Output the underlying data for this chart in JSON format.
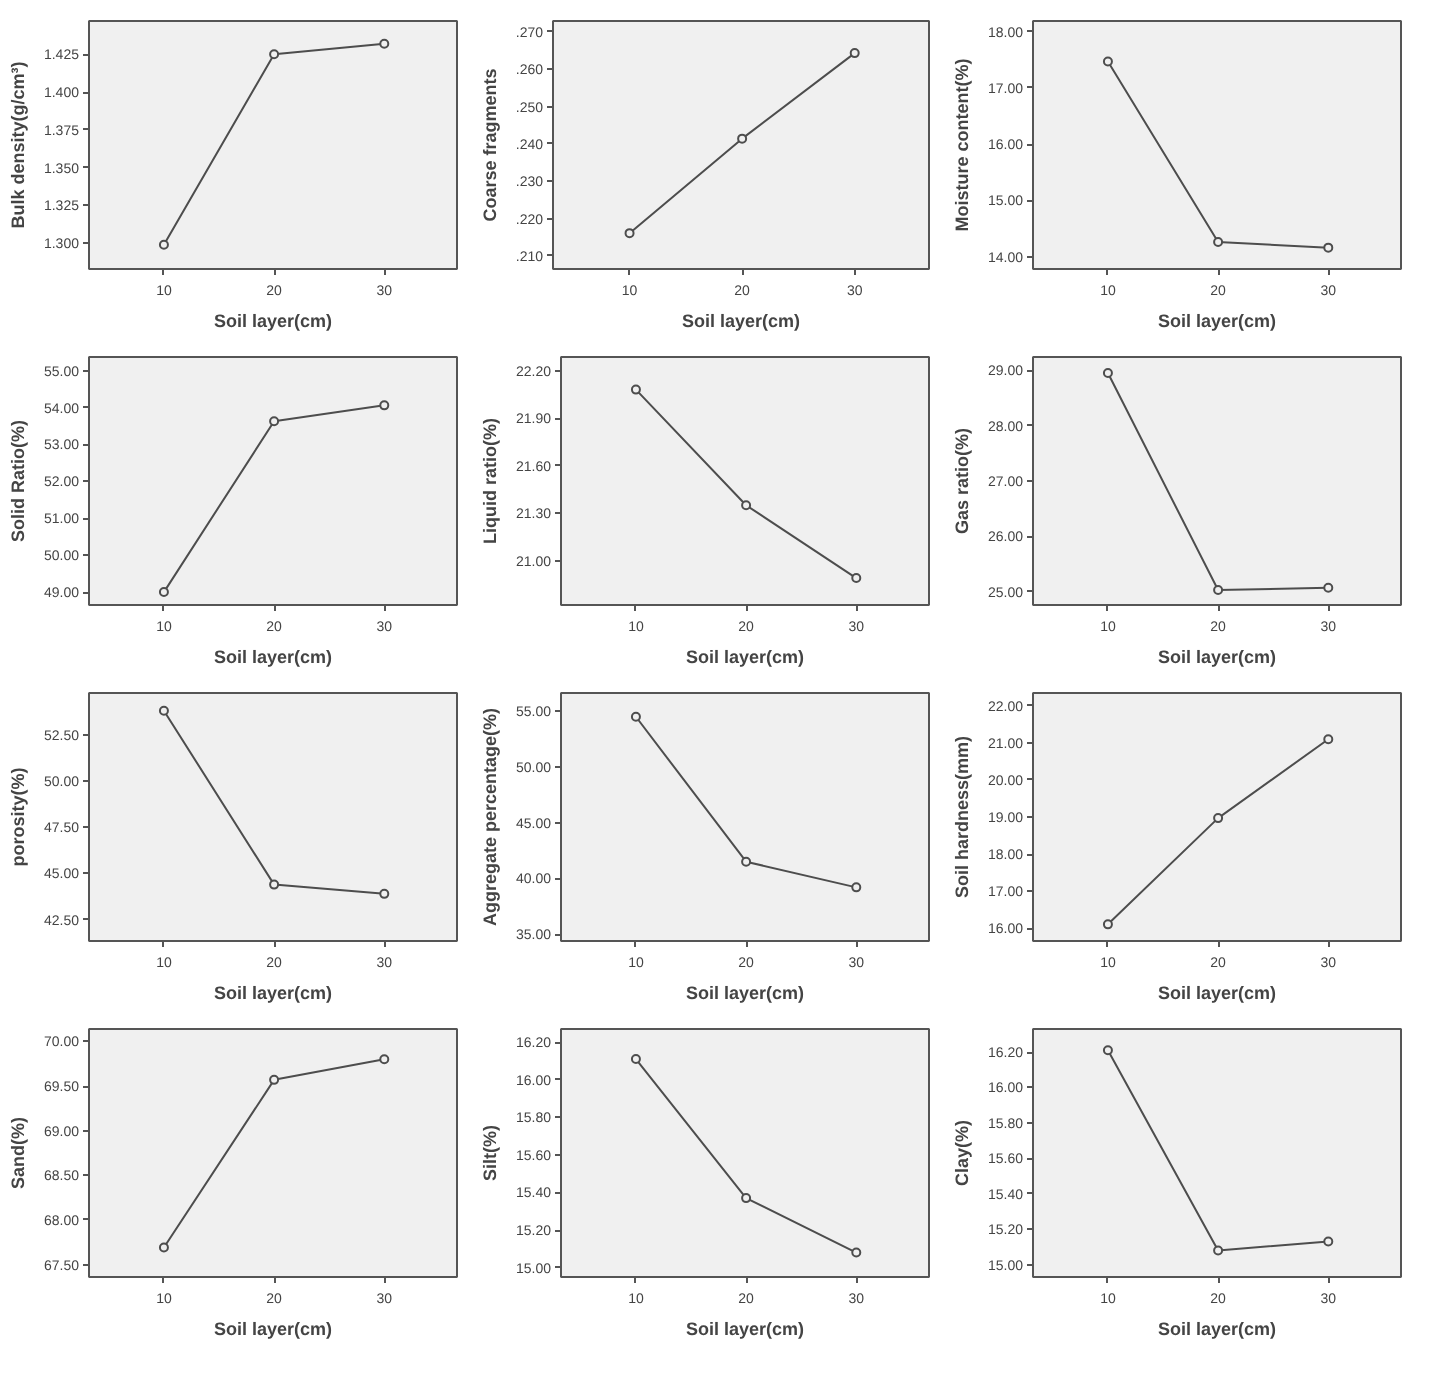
{
  "chart_data": [
    {
      "type": "line",
      "xlabel": "Soil layer(cm)",
      "ylabel": "Bulk density(g/cm³)",
      "x": [
        10,
        20,
        30
      ],
      "values": [
        1.299,
        1.425,
        1.432
      ],
      "color": "#4d4d4d",
      "marker": "circle",
      "line_style": "solid",
      "xlim": [
        3.2,
        36.6
      ],
      "ylim": [
        1.283,
        1.447
      ],
      "xticks": [
        10,
        20,
        30
      ],
      "yticks": [
        {
          "value": 1.3,
          "label": "1.300"
        },
        {
          "value": 1.325,
          "label": "1.325"
        },
        {
          "value": 1.35,
          "label": "1.350"
        },
        {
          "value": 1.375,
          "label": "1.375"
        },
        {
          "value": 1.4,
          "label": "1.400"
        },
        {
          "value": 1.425,
          "label": "1.425"
        }
      ]
    },
    {
      "type": "line",
      "xlabel": "Soil layer(cm)",
      "ylabel": "Coarse fragments",
      "x": [
        10,
        20,
        30
      ],
      "values": [
        0.2161,
        0.2414,
        0.2643
      ],
      "color": "#4d4d4d",
      "marker": "circle",
      "line_style": "solid",
      "xlim": [
        3.2,
        36.6
      ],
      "ylim": [
        0.2065,
        0.2729
      ],
      "xticks": [
        10,
        20,
        30
      ],
      "yticks": [
        {
          "value": 0.21,
          "label": ".210"
        },
        {
          "value": 0.22,
          "label": ".220"
        },
        {
          "value": 0.23,
          "label": ".230"
        },
        {
          "value": 0.24,
          "label": ".240"
        },
        {
          "value": 0.25,
          "label": ".250"
        },
        {
          "value": 0.26,
          "label": ".260"
        },
        {
          "value": 0.27,
          "label": ".270"
        }
      ]
    },
    {
      "type": "line",
      "xlabel": "Soil layer(cm)",
      "ylabel": "Moisture content(%)",
      "x": [
        10,
        20,
        30
      ],
      "values": [
        17.47,
        14.26,
        14.16
      ],
      "color": "#4d4d4d",
      "marker": "circle",
      "line_style": "solid",
      "xlim": [
        3.2,
        36.6
      ],
      "ylim": [
        13.78,
        18.19
      ],
      "xticks": [
        10,
        20,
        30
      ],
      "yticks": [
        {
          "value": 14,
          "label": "14.00"
        },
        {
          "value": 15,
          "label": "15.00"
        },
        {
          "value": 16,
          "label": "16.00"
        },
        {
          "value": 17,
          "label": "17.00"
        },
        {
          "value": 18,
          "label": "18.00"
        }
      ]
    },
    {
      "type": "line",
      "xlabel": "Soil layer(cm)",
      "ylabel": "Solid Ratio(%)",
      "x": [
        10,
        20,
        30
      ],
      "values": [
        49.0,
        53.63,
        54.06
      ],
      "color": "#4d4d4d",
      "marker": "circle",
      "line_style": "solid",
      "xlim": [
        3.2,
        36.6
      ],
      "ylim": [
        48.65,
        55.37
      ],
      "xticks": [
        10,
        20,
        30
      ],
      "yticks": [
        {
          "value": 49,
          "label": "49.00"
        },
        {
          "value": 50,
          "label": "50.00"
        },
        {
          "value": 51,
          "label": "51.00"
        },
        {
          "value": 52,
          "label": "52.00"
        },
        {
          "value": 53,
          "label": "53.00"
        },
        {
          "value": 54,
          "label": "54.00"
        },
        {
          "value": 55,
          "label": "55.00"
        }
      ]
    },
    {
      "type": "line",
      "xlabel": "Soil layer(cm)",
      "ylabel": "Liquid ratio(%)",
      "x": [
        10,
        20,
        30
      ],
      "values": [
        22.08,
        21.35,
        20.89
      ],
      "color": "#4d4d4d",
      "marker": "circle",
      "line_style": "solid",
      "xlim": [
        3.2,
        36.6
      ],
      "ylim": [
        20.72,
        22.286
      ],
      "xticks": [
        10,
        20,
        30
      ],
      "yticks": [
        {
          "value": 21.0,
          "label": "21.00"
        },
        {
          "value": 21.3,
          "label": "21.30"
        },
        {
          "value": 21.6,
          "label": "21.60"
        },
        {
          "value": 21.9,
          "label": "21.90"
        },
        {
          "value": 22.2,
          "label": "22.20"
        }
      ]
    },
    {
      "type": "line",
      "xlabel": "Soil layer(cm)",
      "ylabel": "Gas ratio(%)",
      "x": [
        10,
        20,
        30
      ],
      "values": [
        28.95,
        25.03,
        25.07
      ],
      "color": "#4d4d4d",
      "marker": "circle",
      "line_style": "solid",
      "xlim": [
        3.2,
        36.6
      ],
      "ylim": [
        24.76,
        29.24
      ],
      "xticks": [
        10,
        20,
        30
      ],
      "yticks": [
        {
          "value": 25,
          "label": "25.00"
        },
        {
          "value": 26,
          "label": "26.00"
        },
        {
          "value": 27,
          "label": "27.00"
        },
        {
          "value": 28,
          "label": "28.00"
        },
        {
          "value": 29,
          "label": "29.00"
        }
      ]
    },
    {
      "type": "line",
      "xlabel": "Soil layer(cm)",
      "ylabel": "porosity(%)",
      "x": [
        10,
        20,
        30
      ],
      "values": [
        53.8,
        44.4,
        43.9
      ],
      "color": "#4d4d4d",
      "marker": "circle",
      "line_style": "solid",
      "xlim": [
        3.2,
        36.6
      ],
      "ylim": [
        41.35,
        54.76
      ],
      "xticks": [
        10,
        20,
        30
      ],
      "yticks": [
        {
          "value": 42.5,
          "label": "42.50"
        },
        {
          "value": 45,
          "label": "45.00"
        },
        {
          "value": 47.5,
          "label": "47.50"
        },
        {
          "value": 50,
          "label": "50.00"
        },
        {
          "value": 52.5,
          "label": "52.50"
        }
      ]
    },
    {
      "type": "line",
      "xlabel": "Soil layer(cm)",
      "ylabel": "Aggregate percentage(%)",
      "x": [
        10,
        20,
        30
      ],
      "values": [
        54.5,
        41.5,
        39.2
      ],
      "color": "#4d4d4d",
      "marker": "circle",
      "line_style": "solid",
      "xlim": [
        3.2,
        36.6
      ],
      "ylim": [
        34.39,
        56.63
      ],
      "xticks": [
        10,
        20,
        30
      ],
      "yticks": [
        {
          "value": 35,
          "label": "35.00"
        },
        {
          "value": 40,
          "label": "40.00"
        },
        {
          "value": 45,
          "label": "45.00"
        },
        {
          "value": 50,
          "label": "50.00"
        },
        {
          "value": 55,
          "label": "55.00"
        }
      ]
    },
    {
      "type": "line",
      "xlabel": "Soil layer(cm)",
      "ylabel": "Soil hardness(mm)",
      "x": [
        10,
        20,
        30
      ],
      "values": [
        16.1,
        18.97,
        21.1
      ],
      "color": "#4d4d4d",
      "marker": "circle",
      "line_style": "solid",
      "xlim": [
        3.2,
        36.6
      ],
      "ylim": [
        15.65,
        22.35
      ],
      "xticks": [
        10,
        20,
        30
      ],
      "yticks": [
        {
          "value": 16,
          "label": "16.00"
        },
        {
          "value": 17,
          "label": "17.00"
        },
        {
          "value": 18,
          "label": "18.00"
        },
        {
          "value": 19,
          "label": "19.00"
        },
        {
          "value": 20,
          "label": "20.00"
        },
        {
          "value": 21,
          "label": "21.00"
        },
        {
          "value": 22,
          "label": "22.00"
        }
      ]
    },
    {
      "type": "line",
      "xlabel": "Soil layer(cm)",
      "ylabel": "Sand(%)",
      "x": [
        10,
        20,
        30
      ],
      "values": [
        67.69,
        69.57,
        69.8
      ],
      "color": "#4d4d4d",
      "marker": "circle",
      "line_style": "solid",
      "xlim": [
        3.2,
        36.6
      ],
      "ylim": [
        67.36,
        70.14
      ],
      "xticks": [
        10,
        20,
        30
      ],
      "yticks": [
        {
          "value": 67.5,
          "label": "67.50"
        },
        {
          "value": 68,
          "label": "68.00"
        },
        {
          "value": 68.5,
          "label": "68.50"
        },
        {
          "value": 69,
          "label": "69.00"
        },
        {
          "value": 69.5,
          "label": "69.50"
        },
        {
          "value": 70,
          "label": "70.00"
        }
      ]
    },
    {
      "type": "line",
      "xlabel": "Soil layer(cm)",
      "ylabel": "Silt(%)",
      "x": [
        10,
        20,
        30
      ],
      "values": [
        16.11,
        15.37,
        15.08
      ],
      "color": "#4d4d4d",
      "marker": "circle",
      "line_style": "solid",
      "xlim": [
        3.2,
        36.6
      ],
      "ylim": [
        14.95,
        16.27
      ],
      "xticks": [
        10,
        20,
        30
      ],
      "yticks": [
        {
          "value": 15.0,
          "label": "15.00"
        },
        {
          "value": 15.2,
          "label": "15.20"
        },
        {
          "value": 15.4,
          "label": "15.40"
        },
        {
          "value": 15.6,
          "label": "15.60"
        },
        {
          "value": 15.8,
          "label": "15.80"
        },
        {
          "value": 16.0,
          "label": "16.00"
        },
        {
          "value": 16.2,
          "label": "16.20"
        }
      ]
    },
    {
      "type": "line",
      "xlabel": "Soil layer(cm)",
      "ylabel": "Clay(%)",
      "x": [
        10,
        20,
        30
      ],
      "values": [
        16.21,
        15.08,
        15.13
      ],
      "color": "#4d4d4d",
      "marker": "circle",
      "line_style": "solid",
      "xlim": [
        3.2,
        36.6
      ],
      "ylim": [
        14.93,
        16.33
      ],
      "xticks": [
        10,
        20,
        30
      ],
      "yticks": [
        {
          "value": 15.0,
          "label": "15.00"
        },
        {
          "value": 15.2,
          "label": "15.20"
        },
        {
          "value": 15.4,
          "label": "15.40"
        },
        {
          "value": 15.6,
          "label": "15.60"
        },
        {
          "value": 15.8,
          "label": "15.80"
        },
        {
          "value": 16.0,
          "label": "16.00"
        },
        {
          "value": 16.2,
          "label": "16.20"
        }
      ]
    }
  ]
}
